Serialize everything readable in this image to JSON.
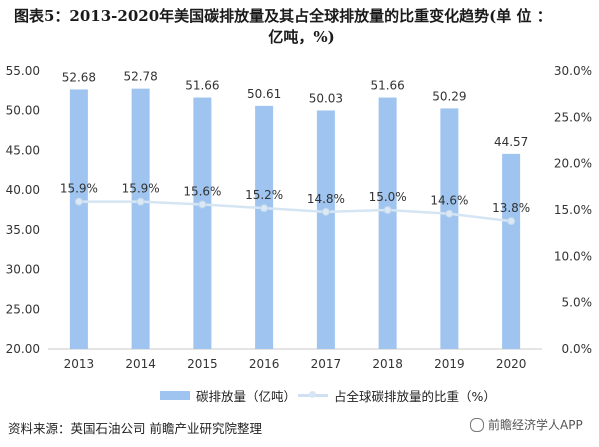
{
  "title_line1": "图表5：2013-2020年美国碳排放量及其占全球排放量的比重变化趋势(单 位 ：",
  "title_line2": "亿吨，%)",
  "source": "资料来源：英国石油公司 前瞻产业研究院整理",
  "watermark": "前瞻经济学人APP",
  "colors": {
    "bar": "#9ec4ef",
    "line": "#d6e5f3",
    "marker": "#dbe8f5"
  },
  "chart_data": {
    "type": "bar",
    "categories": [
      "2013",
      "2014",
      "2015",
      "2016",
      "2017",
      "2018",
      "2019",
      "2020"
    ],
    "series": [
      {
        "name": "碳排放量（亿吨）",
        "type": "bar",
        "axis": "left",
        "values": [
          52.68,
          52.78,
          51.66,
          50.61,
          50.03,
          51.66,
          50.29,
          44.57
        ],
        "labels": [
          "52.68",
          "52.78",
          "51.66",
          "50.61",
          "50.03",
          "51.66",
          "50.29",
          "44.57"
        ]
      },
      {
        "name": "占全球碳排放量的比重（%）",
        "type": "line",
        "axis": "right",
        "values": [
          15.9,
          15.9,
          15.6,
          15.2,
          14.8,
          15.0,
          14.6,
          13.8
        ],
        "labels": [
          "15.9%",
          "15.9%",
          "15.6%",
          "15.2%",
          "14.8%",
          "15.0%",
          "14.6%",
          "13.8%"
        ]
      }
    ],
    "y_left": {
      "range": [
        20,
        55
      ],
      "ticks": [
        "20.00",
        "25.00",
        "30.00",
        "35.00",
        "40.00",
        "45.00",
        "50.00",
        "55.00"
      ]
    },
    "y_right": {
      "range": [
        0,
        30
      ],
      "ticks": [
        "0.0%",
        "5.0%",
        "10.0%",
        "15.0%",
        "20.0%",
        "25.0%",
        "30.0%"
      ]
    },
    "grid": false,
    "legend_position": "bottom"
  }
}
